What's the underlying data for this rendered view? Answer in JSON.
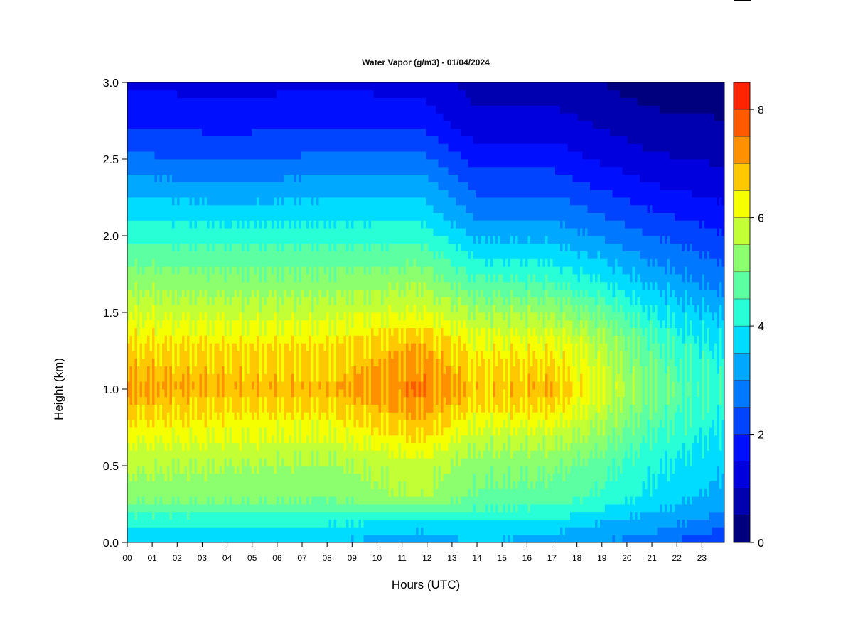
{
  "chart_data": {
    "type": "heatmap",
    "title": "Water Vapor (g/m3) - 01/04/2024",
    "xlabel": "Hours (UTC)",
    "ylabel": "Height (km)",
    "x_ticks": [
      "00",
      "01",
      "02",
      "03",
      "04",
      "05",
      "06",
      "07",
      "08",
      "09",
      "10",
      "11",
      "12",
      "13",
      "14",
      "15",
      "16",
      "17",
      "18",
      "19",
      "20",
      "21",
      "22",
      "23"
    ],
    "xlim": [
      0,
      23.9
    ],
    "y_ticks": [
      "0.0",
      "0.5",
      "1.0",
      "1.5",
      "2.0",
      "2.5",
      "3.0"
    ],
    "ylim": [
      0,
      3.0
    ],
    "colorbar": {
      "ticks": [
        "0",
        "2",
        "4",
        "6",
        "8"
      ],
      "range": [
        0,
        8.5
      ],
      "level_step": 0.5,
      "colors": [
        "#00007f",
        "#0000b0",
        "#0000df",
        "#0010ff",
        "#0044ff",
        "#0078ff",
        "#00a8ff",
        "#00dcff",
        "#28ffd6",
        "#5cffa2",
        "#8cff6e",
        "#c2ff34",
        "#f6ff00",
        "#ffc800",
        "#ff9000",
        "#ff5a00",
        "#ff2400",
        "#df0000",
        "#b00000",
        "#800000"
      ]
    },
    "grid": false,
    "legend": "colorbar-right",
    "z_description_profile": {
      "heights_km": [
        0.0,
        0.1,
        0.2,
        0.3,
        0.5,
        0.7,
        0.9,
        1.0,
        1.1,
        1.3,
        1.5,
        1.7,
        1.9,
        2.1,
        2.3,
        2.5,
        2.7,
        2.9,
        3.0
      ],
      "hourly_profiles": [
        {
          "hour": 0,
          "values": [
            3.6,
            4.0,
            4.6,
            5.2,
            5.6,
            6.2,
            6.8,
            7.1,
            6.9,
            6.5,
            5.9,
            5.3,
            4.7,
            4.0,
            3.3,
            2.6,
            2.0,
            1.6,
            1.4
          ]
        },
        {
          "hour": 4,
          "values": [
            3.6,
            4.0,
            4.6,
            5.2,
            5.5,
            6.1,
            6.6,
            6.9,
            6.8,
            6.4,
            5.8,
            5.2,
            4.6,
            3.9,
            3.2,
            2.5,
            1.9,
            1.5,
            1.3
          ]
        },
        {
          "hour": 8,
          "values": [
            3.5,
            3.9,
            4.5,
            5.1,
            5.4,
            6.0,
            6.6,
            6.9,
            6.7,
            6.4,
            5.8,
            5.2,
            4.6,
            3.9,
            3.3,
            2.6,
            2.0,
            1.6,
            1.4
          ]
        },
        {
          "hour": 11.7,
          "values": [
            3.2,
            3.6,
            4.7,
            5.6,
            5.8,
            6.6,
            7.2,
            7.5,
            7.3,
            6.9,
            6.0,
            5.4,
            4.7,
            4.0,
            3.4,
            2.7,
            2.0,
            1.5,
            1.3
          ]
        },
        {
          "hour": 14,
          "values": [
            3.5,
            3.8,
            4.4,
            4.9,
            5.2,
            5.8,
            6.5,
            6.8,
            6.6,
            6.2,
            5.5,
            4.6,
            3.8,
            3.0,
            2.4,
            1.8,
            1.2,
            0.9,
            0.8
          ]
        },
        {
          "hour": 17,
          "values": [
            3.3,
            3.7,
            4.3,
            4.8,
            5.1,
            5.8,
            6.6,
            6.9,
            6.7,
            6.2,
            5.4,
            4.5,
            3.7,
            3.0,
            2.4,
            1.8,
            1.3,
            0.9,
            0.8
          ]
        },
        {
          "hour": 19,
          "values": [
            3.0,
            3.3,
            3.9,
            4.4,
            4.7,
            5.3,
            5.8,
            6.0,
            5.9,
            5.6,
            4.9,
            4.0,
            3.3,
            2.6,
            2.0,
            1.4,
            1.0,
            0.6,
            0.5
          ]
        },
        {
          "hour": 21,
          "values": [
            2.8,
            3.1,
            3.5,
            3.9,
            4.1,
            4.5,
            4.9,
            5.0,
            4.9,
            4.6,
            4.0,
            3.4,
            2.8,
            2.2,
            1.6,
            1.1,
            0.7,
            0.4,
            0.3
          ]
        },
        {
          "hour": 23.9,
          "values": [
            1.8,
            2.6,
            3.0,
            3.3,
            3.6,
            3.9,
            4.2,
            4.3,
            4.2,
            3.9,
            3.4,
            2.8,
            2.3,
            1.8,
            1.3,
            0.9,
            0.6,
            0.3,
            0.2
          ]
        }
      ]
    }
  }
}
